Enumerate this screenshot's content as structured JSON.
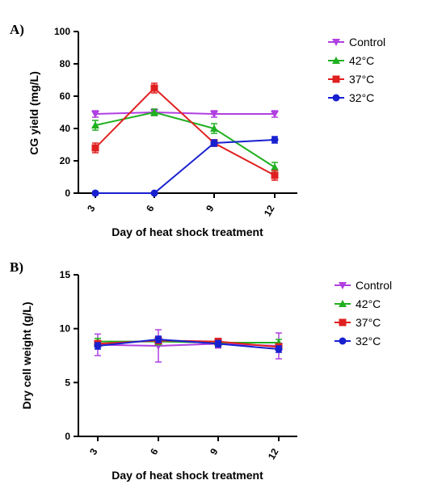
{
  "chart_data": [
    {
      "panel_label": "A)",
      "type": "line",
      "xlabel": "Day of heat shock treatment",
      "ylabel": "CG yield (mg/L)",
      "categories": [
        "3",
        "6",
        "9",
        "12"
      ],
      "ylim": [
        0,
        100
      ],
      "yticks": [
        "0",
        "20",
        "40",
        "60",
        "80",
        "100"
      ],
      "legend_position": "right",
      "series": [
        {
          "name": "Control",
          "color": "#b040e0",
          "marker": "triangle-down",
          "values": [
            49,
            50,
            49,
            49
          ],
          "errors": [
            2,
            2,
            2,
            2
          ]
        },
        {
          "name": "42°C",
          "color": "#20b020",
          "marker": "triangle-up",
          "values": [
            42,
            50,
            40,
            16
          ],
          "errors": [
            3,
            2,
            3,
            3
          ]
        },
        {
          "name": "37°C",
          "color": "#e02020",
          "marker": "square",
          "values": [
            28,
            65,
            31,
            11
          ],
          "errors": [
            3,
            3,
            2,
            3
          ]
        },
        {
          "name": "32°C",
          "color": "#1820d0",
          "marker": "circle",
          "values": [
            0,
            0,
            31,
            33
          ],
          "errors": [
            1,
            0,
            2,
            2
          ]
        }
      ]
    },
    {
      "panel_label": "B)",
      "type": "line",
      "xlabel": "Day of heat shock treatment",
      "ylabel": "Dry cell weight (g/L)",
      "categories": [
        "3",
        "6",
        "9",
        "12"
      ],
      "ylim": [
        0,
        15
      ],
      "yticks": [
        "0",
        "5",
        "10",
        "15"
      ],
      "legend_position": "right",
      "series": [
        {
          "name": "Control",
          "color": "#b040e0",
          "marker": "triangle-down",
          "values": [
            8.5,
            8.4,
            8.6,
            8.4
          ],
          "errors": [
            1.0,
            1.5,
            0.4,
            1.2
          ]
        },
        {
          "name": "42°C",
          "color": "#20b020",
          "marker": "triangle-up",
          "values": [
            8.8,
            8.8,
            8.7,
            8.7
          ],
          "errors": [
            0.3,
            0.3,
            0.3,
            0.3
          ]
        },
        {
          "name": "37°C",
          "color": "#e02020",
          "marker": "square",
          "values": [
            8.6,
            8.9,
            8.8,
            8.3
          ],
          "errors": [
            0.3,
            0.3,
            0.3,
            0.3
          ]
        },
        {
          "name": "32°C",
          "color": "#1820d0",
          "marker": "circle",
          "values": [
            8.4,
            9.0,
            8.6,
            8.1
          ],
          "errors": [
            0.3,
            0.3,
            0.3,
            0.3
          ]
        }
      ]
    }
  ]
}
